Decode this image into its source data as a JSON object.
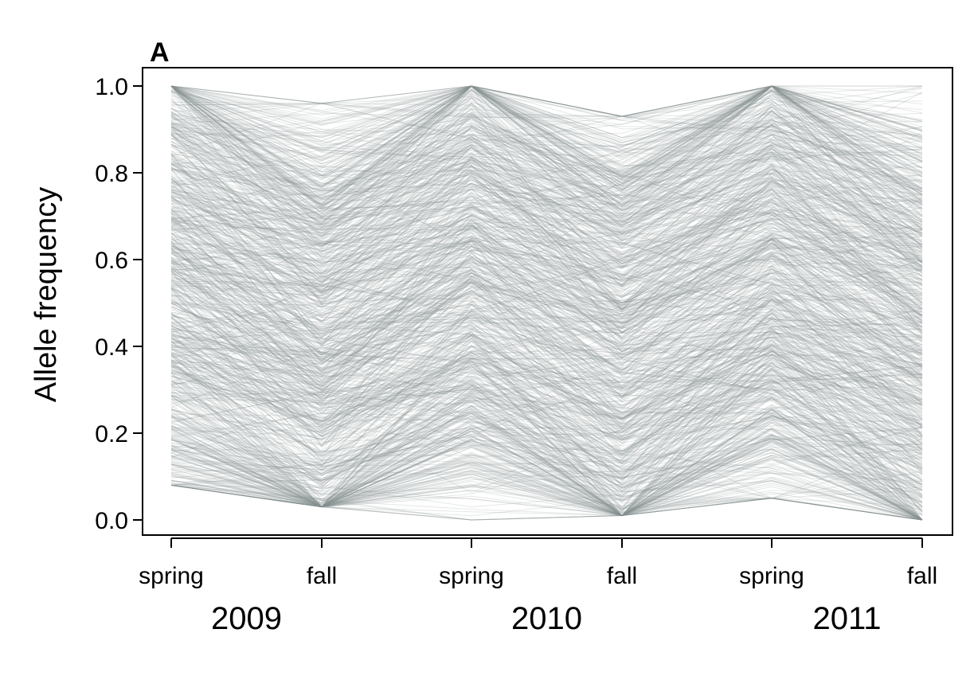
{
  "chart_data": {
    "type": "line",
    "panel_label": "A",
    "xlabel": "",
    "ylabel": "Allele frequency",
    "ylim": [
      0,
      1
    ],
    "yticks": [
      "0.0",
      "0.2",
      "0.4",
      "0.6",
      "0.8",
      "1.0"
    ],
    "categories": [
      "spring",
      "fall",
      "spring",
      "fall",
      "spring",
      "fall"
    ],
    "years": [
      {
        "label": "2009",
        "spans": [
          0,
          1
        ]
      },
      {
        "label": "2010",
        "spans": [
          2,
          3
        ]
      },
      {
        "label": "2011",
        "spans": [
          4,
          5
        ]
      }
    ],
    "line_color": "#8a9191",
    "series_count": 900,
    "series_summary": {
      "description_note": "",
      "mean": [
        0.55,
        0.38,
        0.52,
        0.4,
        0.55,
        0.42
      ],
      "band_low": [
        0.08,
        0.03,
        0.0,
        0.01,
        0.05,
        0.0
      ],
      "band_high": [
        1.0,
        0.96,
        1.0,
        0.93,
        1.0,
        1.0
      ]
    }
  }
}
